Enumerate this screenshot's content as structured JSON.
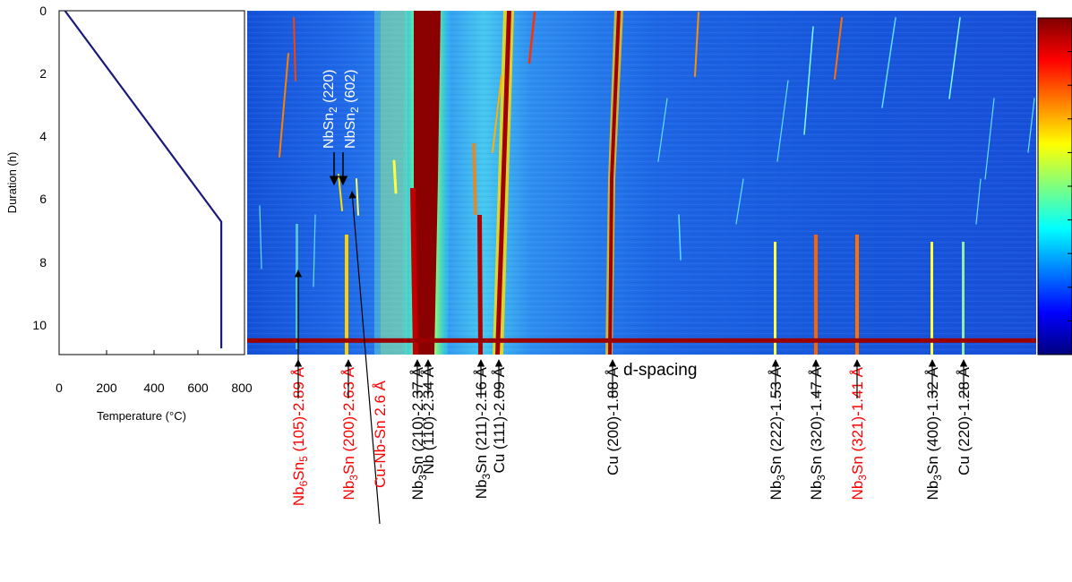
{
  "chart_data": [
    {
      "type": "line",
      "xlabel": "Temperature (°C)",
      "ylabel": "Duration (h)",
      "xlim": [
        0,
        800
      ],
      "ylim": [
        11,
        0
      ],
      "x_ticks": [
        "0",
        "200",
        "400",
        "600",
        "800"
      ],
      "y_ticks": [
        "0",
        "2",
        "4",
        "6",
        "8",
        "10"
      ],
      "series": [
        {
          "x": [
            25,
            700,
            700
          ],
          "y": [
            0,
            6.75,
            10.8
          ],
          "color": "#1a1a7a"
        }
      ]
    },
    {
      "type": "heatmap",
      "x_axis_label": "d-spacing",
      "current_time_marker_h": 10.55,
      "colorbar": [
        "#00007f",
        "#0000ff",
        "#007fff",
        "#00ffff",
        "#7fff7f",
        "#ffff00",
        "#ff7f00",
        "#ff0000",
        "#7f0000"
      ],
      "peak_labels": [
        {
          "parts": [
            [
              "Nb",
              ""
            ],
            [
              "6",
              "sub"
            ],
            [
              "Sn",
              ""
            ],
            [
              "5",
              "sub"
            ],
            [
              " (105)-2.89 Å",
              ""
            ]
          ],
          "color": "#ff0000",
          "arrow": "up"
        },
        {
          "parts": [
            [
              "Nb",
              ""
            ],
            [
              "3",
              "sub"
            ],
            [
              "Sn (200)-2.63 Å",
              ""
            ]
          ],
          "color": "#ff0000",
          "arrow": "up"
        },
        {
          "parts": [
            [
              "Cu-Nb-Sn 2.6 Å",
              ""
            ]
          ],
          "color": "#ff0000",
          "arrow": "line"
        },
        {
          "parts": [
            [
              "Nb",
              ""
            ],
            [
              "3",
              "sub"
            ],
            [
              "Sn (210)-2.37 Å",
              ""
            ]
          ],
          "color": "#000000",
          "arrow": "up"
        },
        {
          "parts": [
            [
              "Nb (110)-2.34 Å",
              ""
            ]
          ],
          "color": "#000000",
          "arrow": "up"
        },
        {
          "parts": [
            [
              "Nb",
              ""
            ],
            [
              "3",
              "sub"
            ],
            [
              "Sn (211)-2.16 Å",
              ""
            ]
          ],
          "color": "#000000",
          "arrow": "up"
        },
        {
          "parts": [
            [
              "Cu (111)-2.09 Å",
              ""
            ]
          ],
          "color": "#000000",
          "arrow": "up"
        },
        {
          "parts": [
            [
              "Cu (200)-1.88 Å",
              ""
            ]
          ],
          "color": "#000000",
          "arrow": "up"
        },
        {
          "parts": [
            [
              "Nb",
              ""
            ],
            [
              "3",
              "sub"
            ],
            [
              "Sn (222)-1.53 Å",
              ""
            ]
          ],
          "color": "#000000",
          "arrow": "up"
        },
        {
          "parts": [
            [
              "Nb",
              ""
            ],
            [
              "3",
              "sub"
            ],
            [
              "Sn (320)-1.47 Å",
              ""
            ]
          ],
          "color": "#000000",
          "arrow": "up"
        },
        {
          "parts": [
            [
              "Nb",
              ""
            ],
            [
              "3",
              "sub"
            ],
            [
              "Sn (321)-1.41 Å",
              ""
            ]
          ],
          "color": "#ff0000",
          "arrow": "up"
        },
        {
          "parts": [
            [
              "Nb",
              ""
            ],
            [
              "3",
              "sub"
            ],
            [
              "Sn (400)-1.32 Å",
              ""
            ]
          ],
          "color": "#000000",
          "arrow": "up"
        },
        {
          "parts": [
            [
              "Cu (220)-1.28 Å",
              ""
            ]
          ],
          "color": "#000000",
          "arrow": "up"
        }
      ],
      "inset_labels": [
        {
          "parts": [
            [
              "NbSn",
              ""
            ],
            [
              "2",
              "sub"
            ],
            [
              " (220)",
              ""
            ]
          ],
          "color": "#ffffff"
        },
        {
          "parts": [
            [
              "NbSn",
              ""
            ],
            [
              "2",
              "sub"
            ],
            [
              " (602)",
              ""
            ]
          ],
          "color": "#ffffff"
        }
      ]
    }
  ]
}
